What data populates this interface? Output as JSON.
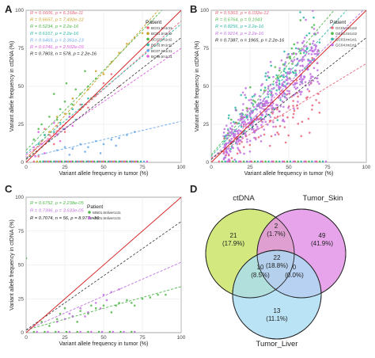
{
  "chart_data": [
    {
      "panel": "A",
      "type": "scatter",
      "xlabel": "Variant allele frequency in tumor (%)",
      "ylabel": "Variant allele frequency in ctDNA (%)",
      "xlim": [
        0,
        100
      ],
      "ylim": [
        0,
        100
      ],
      "xticks": [
        "0",
        "25",
        "50",
        "75",
        "100"
      ],
      "yticks": [
        "0",
        "25",
        "50",
        "75",
        "100"
      ],
      "grid": true,
      "legend": {
        "title": "Patient",
        "placement": "top-right"
      },
      "stats": [
        {
          "text": "R = 0.6606, p = 6.168e-11",
          "color": "#e8647a"
        },
        {
          "text": "R = 0.6657, p = 7.492e-12",
          "color": "#c9a227"
        },
        {
          "text": "R = 0.5234, p = 2.2e-16",
          "color": "#4fb849"
        },
        {
          "text": "R = 0.6167, p = 2.2e-16",
          "color": "#2fb7a5"
        },
        {
          "text": "R = 0.6469, p = 2.361e-13",
          "color": "#6aa8e8"
        },
        {
          "text": "R = 0.6746, p = 2.502e-09",
          "color": "#e060e0"
        },
        {
          "text": "R = 0.7803, n = 578, p = 2.2e-16",
          "color": "#222222"
        }
      ],
      "series": [
        {
          "name": "BC01.tm1ct1",
          "color": "#e8647a",
          "slope": 0.9,
          "intercept": 3,
          "points": [
            [
              5,
              8
            ],
            [
              10,
              14
            ],
            [
              15,
              18
            ],
            [
              20,
              24
            ],
            [
              30,
              30
            ],
            [
              35,
              38
            ],
            [
              40,
              36
            ],
            [
              45,
              44
            ],
            [
              50,
              52
            ],
            [
              25,
              20
            ],
            [
              12,
              22
            ],
            [
              60,
              50
            ],
            [
              55,
              58
            ],
            [
              8,
              4
            ],
            [
              18,
              12
            ]
          ]
        },
        {
          "name": "BC01.tm2ct2",
          "color": "#c9a227",
          "slope": 1.15,
          "intercept": 2,
          "points": [
            [
              20,
              30
            ],
            [
              30,
              42
            ],
            [
              40,
              48
            ],
            [
              45,
              60
            ],
            [
              55,
              66
            ],
            [
              60,
              72
            ],
            [
              65,
              78
            ],
            [
              70,
              82
            ],
            [
              75,
              85
            ],
            [
              50,
              58
            ],
            [
              35,
              35
            ],
            [
              25,
              32
            ],
            [
              15,
              20
            ]
          ]
        },
        {
          "name": "BC02.tm1ct2",
          "color": "#4fb849",
          "slope": 1.05,
          "intercept": 8,
          "points": [
            [
              10,
              25
            ],
            [
              15,
              30
            ],
            [
              20,
              28
            ],
            [
              22,
              35
            ],
            [
              25,
              40
            ],
            [
              30,
              38
            ],
            [
              32,
              48
            ],
            [
              35,
              45
            ],
            [
              40,
              50
            ],
            [
              45,
              55
            ],
            [
              12,
              18
            ],
            [
              18,
              45
            ],
            [
              28,
              32
            ],
            [
              5,
              15
            ],
            [
              38,
              60
            ],
            [
              42,
              42
            ],
            [
              8,
              22
            ],
            [
              26,
              52
            ]
          ]
        },
        {
          "name": "BC03.tm1ct1",
          "color": "#2fb7a5",
          "slope": 0.85,
          "intercept": 6,
          "points": [
            [
              8,
              12
            ],
            [
              12,
              18
            ],
            [
              18,
              20
            ],
            [
              22,
              26
            ],
            [
              28,
              30
            ],
            [
              32,
              28
            ],
            [
              36,
              38
            ],
            [
              40,
              42
            ],
            [
              15,
              14
            ],
            [
              24,
              22
            ],
            [
              30,
              35
            ],
            [
              10,
              10
            ]
          ]
        },
        {
          "name": "BC07.tm1ct1",
          "color": "#6aa8e8",
          "slope": 0.24,
          "intercept": 3,
          "points": [
            [
              20,
              8
            ],
            [
              25,
              10
            ],
            [
              30,
              9
            ],
            [
              35,
              12
            ],
            [
              40,
              10
            ],
            [
              45,
              14
            ],
            [
              50,
              12
            ],
            [
              55,
              15
            ],
            [
              60,
              16
            ],
            [
              65,
              18
            ],
            [
              70,
              20
            ],
            [
              28,
              5
            ],
            [
              48,
              6
            ],
            [
              38,
              7
            ],
            [
              58,
              11
            ]
          ]
        },
        {
          "name": "BC09.tm1ct1",
          "color": "#e060e0",
          "slope": 0.7,
          "intercept": 5,
          "points": [
            [
              5,
              10
            ],
            [
              10,
              12
            ],
            [
              15,
              15
            ],
            [
              20,
              18
            ],
            [
              25,
              22
            ],
            [
              30,
              24
            ],
            [
              12,
              6
            ],
            [
              18,
              26
            ],
            [
              22,
              14
            ],
            [
              8,
              20
            ],
            [
              28,
              30
            ],
            [
              6,
              4
            ]
          ]
        }
      ]
    },
    {
      "panel": "B",
      "type": "scatter",
      "xlabel": "Variant allele frequency in tumor (%)",
      "ylabel": "Variant allele frequency in ctDNA (%)",
      "xlim": [
        0,
        100
      ],
      "ylim": [
        0,
        100
      ],
      "xticks": [
        "0",
        "25",
        "50",
        "75",
        "100"
      ],
      "yticks": [
        "0",
        "25",
        "50",
        "75",
        "100"
      ],
      "grid": true,
      "legend": {
        "title": "Patient",
        "placement": "top-right"
      },
      "stats": [
        {
          "text": "R = 0.5363, p = 6.032e-12",
          "color": "#e8647a"
        },
        {
          "text": "R = 0.6764, p = 0.1043",
          "color": "#4fb849"
        },
        {
          "text": "R = 0.8256, p = 2.2e-16",
          "color": "#2fb7a5"
        },
        {
          "text": "R = 0.9214, p = 2.2e-16",
          "color": "#c070e0"
        },
        {
          "text": "R = 0.7387, n = 1965, p = 2.2e-16",
          "color": "#222222"
        }
      ],
      "series": [
        {
          "name": "GC01.tm1ct2",
          "color": "#e8647a",
          "slope": 0.62,
          "intercept": 3
        },
        {
          "name": "GC02.tm1ct2",
          "color": "#4fb849",
          "slope": 1.2,
          "intercept": 5
        },
        {
          "name": "GC03.tm1ct1",
          "color": "#2fb7a5",
          "slope": 1.1,
          "intercept": 4
        },
        {
          "name": "GC04.tm1ct1",
          "color": "#c070e0",
          "slope": 1.0,
          "intercept": 2
        }
      ]
    },
    {
      "panel": "C",
      "type": "scatter",
      "xlabel": "Variant allele frequency in tumor (%)",
      "ylabel": "Variant allele frequency in ctDNA (%)",
      "xlim": [
        0,
        100
      ],
      "ylim": [
        0,
        100
      ],
      "xticks": [
        "0",
        "25",
        "50",
        "75",
        "100"
      ],
      "yticks": [
        "0",
        "25",
        "50",
        "75",
        "100"
      ],
      "grid": true,
      "legend": {
        "title": "Patient",
        "placement": "top"
      },
      "stats": [
        {
          "text": "R = 0.6752, p = 2.238e-05",
          "color": "#4fb849"
        },
        {
          "text": "R = 0.7396, p = 3.633e-05",
          "color": "#c070e0"
        },
        {
          "text": "R = 0.7074, n = 56, p = 8.977e-10",
          "color": "#222222"
        }
      ],
      "series": [
        {
          "name": "MN01.tmliver1ct1",
          "color": "#4fb849",
          "slope": 0.32,
          "intercept": 2,
          "points": [
            [
              0,
              55
            ],
            [
              10,
              8
            ],
            [
              20,
              10
            ],
            [
              22,
              14
            ],
            [
              30,
              12
            ],
            [
              35,
              16
            ],
            [
              40,
              14
            ],
            [
              45,
              18
            ],
            [
              50,
              20
            ],
            [
              55,
              15
            ],
            [
              60,
              22
            ],
            [
              65,
              24
            ],
            [
              70,
              20
            ],
            [
              75,
              25
            ],
            [
              80,
              26
            ],
            [
              85,
              28
            ],
            [
              90,
              28
            ],
            [
              15,
              5
            ],
            [
              25,
              18
            ],
            [
              42,
              20
            ],
            [
              58,
              20
            ],
            [
              68,
              22
            ],
            [
              33,
              8
            ]
          ]
        },
        {
          "name": "MN01.tmliver1ct1",
          "color": "#c070e0",
          "slope": 0.5,
          "intercept": 2,
          "points": [
            [
              20,
              8
            ],
            [
              25,
              10
            ],
            [
              30,
              12
            ],
            [
              35,
              18
            ],
            [
              40,
              15
            ],
            [
              45,
              22
            ],
            [
              50,
              28
            ],
            [
              55,
              30
            ],
            [
              60,
              32
            ],
            [
              48,
              18
            ],
            [
              38,
              12
            ],
            [
              28,
              14
            ],
            [
              52,
              24
            ]
          ]
        }
      ]
    },
    {
      "panel": "D",
      "type": "venn",
      "sets": [
        "ctDNA",
        "Tumor_Skin",
        "Tumor_Liver"
      ],
      "regions": [
        {
          "sets": [
            "ctDNA"
          ],
          "count": "21",
          "pct": "(17.9%)"
        },
        {
          "sets": [
            "Tumor_Skin"
          ],
          "count": "49",
          "pct": "(41.9%)"
        },
        {
          "sets": [
            "Tumor_Liver"
          ],
          "count": "13",
          "pct": "(11.1%)"
        },
        {
          "sets": [
            "ctDNA",
            "Tumor_Skin"
          ],
          "count": "2",
          "pct": "(1.7%)"
        },
        {
          "sets": [
            "ctDNA",
            "Tumor_Liver"
          ],
          "count": "10",
          "pct": "(8.5%)"
        },
        {
          "sets": [
            "Tumor_Skin",
            "Tumor_Liver"
          ],
          "count": "0",
          "pct": "(0.0%)"
        },
        {
          "sets": [
            "ctDNA",
            "Tumor_Skin",
            "Tumor_Liver"
          ],
          "count": "22",
          "pct": "(18.8%)"
        }
      ],
      "colors": [
        "#c8e25e",
        "#e28de6",
        "#a9dcf2"
      ]
    }
  ]
}
